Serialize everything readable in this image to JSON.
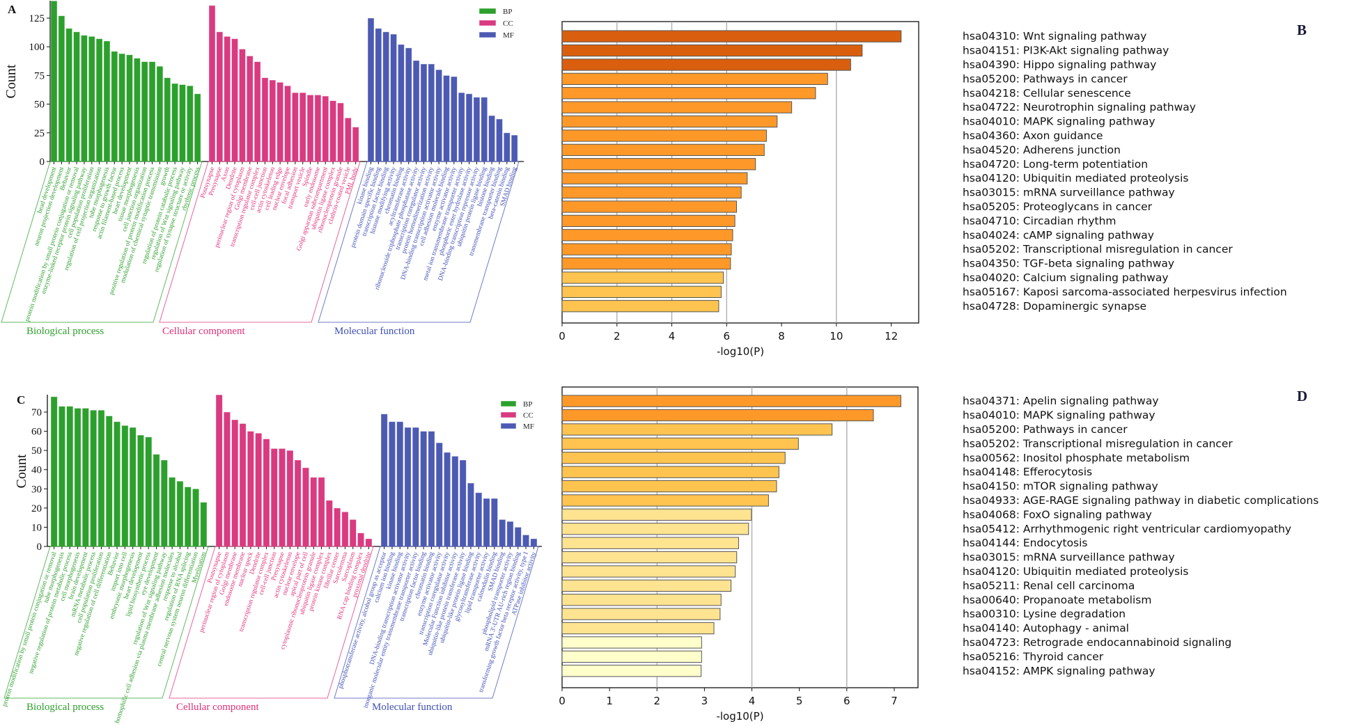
{
  "chart_data": [
    {
      "type": "bar",
      "panel_label": "A",
      "ylabel": "Count",
      "ylim": [
        0,
        140
      ],
      "yticks": [
        0,
        25,
        50,
        75,
        100,
        125
      ],
      "legend": [
        {
          "name": "BP",
          "color": "#2ca02c"
        },
        {
          "name": "CC",
          "color": "#d93a80"
        },
        {
          "name": "MF",
          "color": "#4c5ab3"
        }
      ],
      "legend_position": "top-right",
      "groups": [
        {
          "name": "Biological process",
          "color": "#2ca02c",
          "label_color": "#2ca02c",
          "categories": [
            "head development",
            "neuron projection development",
            "Behavior",
            "protein modification by small protein conjugation or removal",
            "enzyme-linked receptor protein signaling pathway",
            "cell population proliferation",
            "regulation of cell projection organization",
            "tube morphogenesis",
            "response to growth factor",
            "actin filament-based process",
            "heart development",
            "tissue morphogenesis",
            "cell junction organization",
            "positive regulation of protein modification process",
            "modulation of chemical synaptic transmission",
            "growth",
            "regulation of protein catabolic process",
            "regulation of Wnt signaling pathway",
            "regulation of synapse structure or activity",
            "rhythmic process"
          ],
          "values": [
            140,
            127,
            116,
            113,
            110,
            109,
            107,
            105,
            96,
            94,
            93,
            90,
            87,
            87,
            83,
            73,
            68,
            67,
            66,
            59
          ]
        },
        {
          "name": "Cellular component",
          "color": "#d93a80",
          "label_color": "#e0307a",
          "categories": [
            "Postsynapse",
            "Presynapse",
            "Axon",
            "Dendrite",
            "perinuclear region of cytoplasm",
            "Golgi membrane",
            "transcription regulator complex",
            "cell-cell junction",
            "actin cytoskeleton",
            "cell leading edge",
            "nuclear envelope",
            "focal adhesion",
            "transport vesicle",
            "Spindle",
            "early endosome",
            "Golgi apparatus subcompartment",
            "ubiquitin ligase complex",
            "ribonucleoprotein granule",
            "clathrin-coated vesicle",
            "PML body"
          ],
          "values": [
            136,
            113,
            109,
            107,
            98,
            92,
            87,
            73,
            71,
            69,
            66,
            60,
            60,
            58,
            58,
            57,
            53,
            51,
            38,
            30
          ]
        },
        {
          "name": "Molecular function",
          "color": "#4c5ab3",
          "label_color": "#3f4fb5",
          "categories": [
            "kinase binding",
            "protein domain specific binding",
            "transcription factor binding",
            "histone modifying activity",
            "chromatin binding",
            "acyltransferase activity",
            "ribonucleoside triphosphate phosphatase activity",
            "transcription coregulator activity",
            "protein homodimerization activity",
            "DNA-binding transcription activator activity",
            "cell adhesion molecule binding",
            "enzyme activator activity",
            "metal ion transmembrane transporter activity",
            "phosphoric ester hydrolase activity",
            "DNA-binding transcription repressor activity",
            "ubiquitin protein ligase binding",
            "histone binding",
            "transmembrane transporter binding",
            "beta-catenin binding",
            "SMAD binding"
          ],
          "values": [
            125,
            116,
            113,
            111,
            102,
            99,
            88,
            85,
            85,
            80,
            75,
            74,
            60,
            59,
            56,
            56,
            40,
            37,
            25,
            23
          ]
        }
      ]
    },
    {
      "type": "bar",
      "orientation": "horizontal",
      "panel_label": "B",
      "xlabel": "-log10(P)",
      "xlim": [
        0,
        13
      ],
      "xticks": [
        0,
        2,
        4,
        6,
        8,
        10,
        12
      ],
      "grid_x": [
        2,
        4,
        6,
        10
      ],
      "categories": [
        "hsa04310: Wnt signaling pathway",
        "hsa04151: PI3K-Akt signaling pathway",
        "hsa04390: Hippo signaling pathway",
        "hsa05200: Pathways in cancer",
        "hsa04218: Cellular senescence",
        "hsa04722: Neurotrophin signaling pathway",
        "hsa04010: MAPK signaling pathway",
        "hsa04360: Axon guidance",
        "hsa04520: Adherens junction",
        "hsa04720: Long-term potentiation",
        "hsa04120: Ubiquitin mediated proteolysis",
        "hsa03015: mRNA surveillance pathway",
        "hsa05205: Proteoglycans in cancer",
        "hsa04710: Circadian rhythm",
        "hsa04024: cAMP signaling pathway",
        "hsa05202: Transcriptional misregulation in cancer",
        "hsa04350: TGF-beta signaling pathway",
        "hsa04020: Calcium signaling pathway",
        "hsa05167: Kaposi sarcoma-associated herpesvirus infection",
        "hsa04728: Dopaminergic synapse"
      ],
      "values": [
        12.36,
        10.94,
        10.52,
        9.68,
        9.24,
        8.37,
        7.84,
        7.45,
        7.37,
        7.05,
        6.75,
        6.53,
        6.36,
        6.3,
        6.22,
        6.17,
        6.14,
        5.88,
        5.8,
        5.71
      ],
      "colors": [
        "#d95f0e",
        "#d95f0e",
        "#d95f0e",
        "#fe9929",
        "#fe9929",
        "#fe9929",
        "#fe9929",
        "#fe9929",
        "#fe9929",
        "#fe9929",
        "#fe9929",
        "#fe9929",
        "#fe9929",
        "#fe9929",
        "#fe9929",
        "#fe9929",
        "#fe9929",
        "#fec44f",
        "#fec44f",
        "#fec44f"
      ]
    },
    {
      "type": "bar",
      "panel_label": "C",
      "ylabel": "Count",
      "ylim": [
        0,
        80
      ],
      "yticks": [
        0,
        10,
        20,
        30,
        40,
        50,
        60,
        70
      ],
      "legend": [
        {
          "name": "BP",
          "color": "#2ca02c"
        },
        {
          "name": "CC",
          "color": "#d93a80"
        },
        {
          "name": "MF",
          "color": "#4c5ab3"
        }
      ],
      "legend_position": "top-right",
      "groups": [
        {
          "name": "Biological process",
          "color": "#2ca02c",
          "label_color": "#2ca02c",
          "categories": [
            "protein modification by small protein conjugation or removal",
            "tube morphogenesis",
            "negative regulation of protein metabolic process",
            "cell morphogenesis",
            "brain development",
            "mRNA metabolic process",
            "cell population proliferation",
            "negative regulation of cell differentiation",
            "Behavior",
            "import into cell",
            "embryonic morphogenesis",
            "heart development",
            "lipid biosynthetic process",
            "eye development",
            "regulation of Wnt signaling pathway",
            "homophilic cell adhesion via plasma membrane adhesion molecules",
            "response to alcohol",
            "regulation of RNA splicing",
            "central nervous system neuron differentiation",
            "Myelination"
          ],
          "values": [
            78,
            73,
            73,
            72,
            72,
            71,
            71,
            68,
            65,
            63,
            62,
            58,
            57,
            48,
            45,
            36,
            34,
            31,
            30,
            23
          ]
        },
        {
          "name": "Cellular component",
          "color": "#d93a80",
          "label_color": "#e0307a",
          "categories": [
            "Postsynapse",
            "perinuclear region of cytoplasm",
            "Golgi membrane",
            "endosome membrane",
            "nuclear speck",
            "Dendrite",
            "transcription regulator complex",
            "cell-cell junction",
            "Presynapse",
            "actin cytoskeleton",
            "nuclear envelope",
            "apical part of cell",
            "cytoplasmic ribonucleoprotein granule",
            "ubiquitin ligase complex",
            "protein kinase complex",
            "fibrillar center",
            "Sarcolemma",
            "Sarcoplasm",
            "RNA cap binding complex",
            "proximal dendrite"
          ],
          "values": [
            79,
            70,
            66,
            64,
            60,
            59,
            56,
            51,
            51,
            50,
            45,
            41,
            36,
            36,
            24,
            20,
            18,
            14,
            7,
            4
          ]
        },
        {
          "name": "Molecular function",
          "color": "#4c5ab3",
          "label_color": "#3f4fb5",
          "categories": [
            "phosphotransferase activity, alcohol group as acceptor",
            "calcium ion binding",
            "kinase binding",
            "DNA-binding transcription activator activity",
            "inorganic molecular entity transmembrane transporter activity",
            "transcription factor binding",
            "chromatin binding",
            "enzyme activator activity",
            "transcription coregulator activity",
            "Molecular Function inhibitor activity",
            "ubiquitin-like protein transferase activity",
            "ubiquitin-like protein ligase binding",
            "glycosyltransferase activity",
            "lipid transporter activity",
            "calmodulin binding",
            "SMAD binding",
            "phospholipid transporter activity",
            "mRNA 3'-UTR AU-rich region binding",
            "transforming growth factor beta receptor activity, type I",
            "ATPase inhibitor activity"
          ],
          "values": [
            69,
            65,
            65,
            62,
            62,
            60,
            60,
            54,
            49,
            47,
            45,
            33,
            28,
            25,
            25,
            14,
            13,
            10,
            6,
            4
          ]
        }
      ]
    },
    {
      "type": "bar",
      "orientation": "horizontal",
      "panel_label": "D",
      "xlabel": "-log10(P)",
      "xlim": [
        0,
        7.5
      ],
      "xticks": [
        0,
        1,
        2,
        3,
        4,
        5,
        6,
        7
      ],
      "grid_x": [
        2,
        4,
        6
      ],
      "categories": [
        "hsa04371: Apelin signaling pathway",
        "hsa04010: MAPK signaling pathway",
        "hsa05200: Pathways in cancer",
        "hsa05202: Transcriptional misregulation in cancer",
        "hsa00562: Inositol phosphate metabolism",
        "hsa04148: Efferocytosis",
        "hsa04150: mTOR signaling pathway",
        "hsa04933: AGE-RAGE signaling pathway in diabetic complications",
        "hsa04068: FoxO signaling pathway",
        "hsa05412: Arrhythmogenic right ventricular cardiomyopathy",
        "hsa04144: Endocytosis",
        "hsa03015: mRNA surveillance pathway",
        "hsa04120: Ubiquitin mediated proteolysis",
        "hsa05211: Renal cell carcinoma",
        "hsa00640: Propanoate metabolism",
        "hsa00310: Lysine degradation",
        "hsa04140: Autophagy - animal",
        "hsa04723: Retrograde endocannabinoid signaling",
        "hsa05216: Thyroid cancer",
        "hsa04152: AMPK signaling pathway"
      ],
      "values": [
        7.14,
        6.56,
        5.69,
        4.98,
        4.7,
        4.57,
        4.52,
        4.35,
        3.99,
        3.93,
        3.72,
        3.68,
        3.65,
        3.56,
        3.35,
        3.33,
        3.2,
        2.94,
        2.94,
        2.93
      ],
      "colors": [
        "#fe9929",
        "#fe9929",
        "#fec44f",
        "#fec44f",
        "#fec44f",
        "#fec44f",
        "#fec44f",
        "#fec44f",
        "#fee391",
        "#fee391",
        "#fee391",
        "#fee391",
        "#fee391",
        "#fee391",
        "#fee391",
        "#fee391",
        "#fee391",
        "#ffffcc",
        "#ffffcc",
        "#ffffcc"
      ]
    }
  ]
}
